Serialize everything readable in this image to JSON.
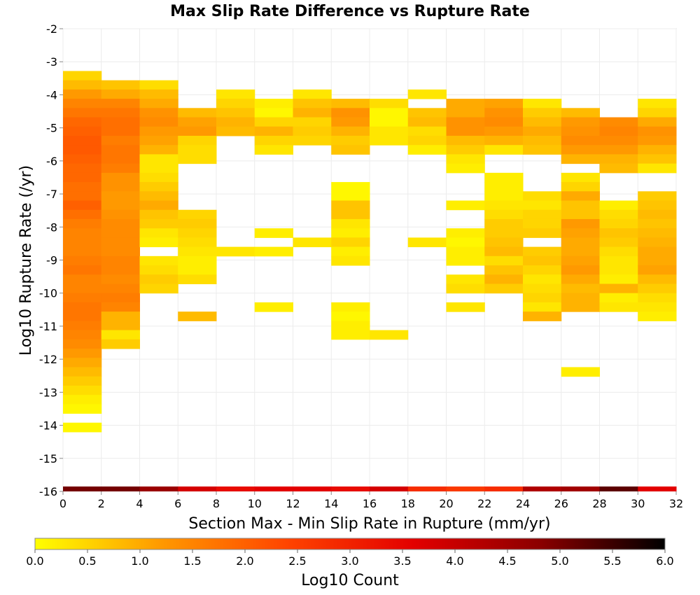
{
  "chart_data": {
    "type": "heatmap",
    "title": "Max Slip Rate Difference vs Rupture Rate",
    "xlabel": "Section Max - Min Slip Rate in Rupture (mm/yr)",
    "ylabel": "Log10 Rupture Rate (/yr)",
    "xlim": [
      0,
      32
    ],
    "ylim": [
      -16,
      -2
    ],
    "x_ticks": [
      0,
      2,
      4,
      6,
      8,
      10,
      12,
      14,
      16,
      18,
      20,
      22,
      24,
      26,
      28,
      30,
      32
    ],
    "y_ticks": [
      -2,
      -3,
      -4,
      -5,
      -6,
      -7,
      -8,
      -9,
      -10,
      -11,
      -12,
      -13,
      -14,
      -15,
      -16
    ],
    "grid": true,
    "x_bin_width": 2,
    "y_bin_height": 0.28,
    "colorbar": {
      "label": "Log10 Count",
      "min": 0.0,
      "max": 6.0,
      "ticks": [
        "0.0",
        "0.5",
        "1.0",
        "1.5",
        "2.0",
        "2.5",
        "3.0",
        "3.5",
        "4.0",
        "4.5",
        "5.0",
        "5.5",
        "6.0"
      ],
      "colors": [
        "#ffff00",
        "#ff9900",
        "#ff4400",
        "#e30000",
        "#8c0000",
        "#000000"
      ]
    },
    "columns": [
      {
        "x_start": 0,
        "top": -3.28,
        "values": [
          0.5,
          0.8,
          1.2,
          1.5,
          1.7,
          1.9,
          2.0,
          2.1,
          2.1,
          2.0,
          1.9,
          1.9,
          1.8,
          1.8,
          2.0,
          1.8,
          1.6,
          1.5,
          1.5,
          1.5,
          1.6,
          1.7,
          1.5,
          1.5,
          1.6,
          1.7,
          1.7,
          1.6,
          1.5,
          1.4,
          1.2,
          1.0,
          0.8,
          0.6,
          0.4,
          0.2,
          0.1,
          null,
          0.1
        ]
      },
      {
        "x_start": 2,
        "top": -3.56,
        "values": [
          0.7,
          1.0,
          1.5,
          1.7,
          1.8,
          1.8,
          1.6,
          1.7,
          1.7,
          1.6,
          1.3,
          1.3,
          1.2,
          1.2,
          1.3,
          1.4,
          1.4,
          1.4,
          1.4,
          1.5,
          1.5,
          1.4,
          1.5,
          1.6,
          1.5,
          0.9,
          0.9,
          0.3,
          0.6
        ]
      },
      {
        "x_start": 4,
        "top": -3.56,
        "values": [
          0.4,
          0.8,
          1.0,
          1.3,
          1.4,
          1.2,
          1.1,
          0.9,
          0.3,
          0.3,
          0.4,
          0.6,
          0.8,
          1.0,
          0.7,
          0.6,
          0.3,
          0.2,
          null,
          0.3,
          0.4,
          0.6,
          0.5
        ]
      },
      {
        "x_start": 6,
        "top": -4.4,
        "values": [
          0.8,
          1.1,
          1.2,
          0.5,
          0.4,
          0.4,
          null,
          null,
          null,
          null,
          null,
          0.5,
          0.6,
          0.5,
          0.4,
          0.3,
          0.2,
          0.2,
          0.4,
          null,
          null,
          null,
          0.8
        ]
      },
      {
        "x_start": 8,
        "top": -3.84,
        "values": [
          0.3,
          0.5,
          0.7,
          0.9,
          0.8,
          null,
          null,
          null,
          null,
          null,
          null,
          null,
          null,
          null,
          null,
          null,
          null,
          0.3
        ]
      },
      {
        "x_start": 10,
        "top": -4.12,
        "values": [
          0.2,
          0.1,
          0.5,
          0.9,
          0.5,
          0.3,
          null,
          null,
          null,
          null,
          null,
          null,
          null,
          null,
          0.2,
          null,
          0.2,
          null,
          null,
          null,
          null,
          null,
          0.2
        ]
      },
      {
        "x_start": 12,
        "top": -3.84,
        "values": [
          0.3,
          0.7,
          0.9,
          0.5,
          0.6,
          0.5,
          null,
          null,
          null,
          null,
          null,
          null,
          null,
          null,
          null,
          null,
          0.3
        ]
      },
      {
        "x_start": 14,
        "top": -4.12,
        "values": [
          0.8,
          1.3,
          1.2,
          0.9,
          0.6,
          0.7,
          null,
          null,
          null,
          0.1,
          0.1,
          0.7,
          0.7,
          0.3,
          0.2,
          0.5,
          0.2,
          0.3,
          null,
          null,
          null,
          null,
          0.2,
          0.1,
          0.2,
          0.2
        ]
      },
      {
        "x_start": 16,
        "top": -4.12,
        "values": [
          0.4,
          0.1,
          0.1,
          0.3,
          0.3,
          null,
          null,
          null,
          null,
          null,
          null,
          null,
          null,
          null,
          null,
          null,
          null,
          null,
          null,
          null,
          null,
          null,
          null,
          null,
          null,
          0.3
        ]
      },
      {
        "x_start": 18,
        "top": -3.84,
        "values": [
          0.3,
          null,
          0.7,
          0.8,
          0.4,
          0.5,
          0.2,
          null,
          null,
          null,
          null,
          null,
          null,
          null,
          null,
          null,
          0.3
        ]
      },
      {
        "x_start": 20,
        "top": -4.12,
        "values": [
          1.0,
          1.0,
          1.3,
          1.3,
          0.8,
          0.6,
          0.3,
          0.2,
          null,
          null,
          null,
          0.2,
          null,
          null,
          0.2,
          0.1,
          0.2,
          0.2,
          null,
          0.3,
          0.4,
          null,
          0.3
        ]
      },
      {
        "x_start": 22,
        "top": -4.12,
        "values": [
          1.1,
          1.3,
          1.4,
          1.2,
          0.9,
          0.3,
          null,
          null,
          0.2,
          0.2,
          0.2,
          0.3,
          0.4,
          0.6,
          0.6,
          0.7,
          0.8,
          0.4,
          0.7,
          0.9,
          0.6
        ]
      },
      {
        "x_start": 24,
        "top": -4.12,
        "values": [
          0.3,
          0.6,
          0.8,
          1.0,
          0.8,
          0.7,
          null,
          null,
          null,
          null,
          0.4,
          0.3,
          0.5,
          0.5,
          0.6,
          null,
          0.6,
          0.7,
          0.5,
          0.3,
          0.4,
          0.5,
          0.3,
          0.9
        ]
      },
      {
        "x_start": 26,
        "top": -4.4,
        "values": [
          0.8,
          1.2,
          1.3,
          1.4,
          1.2,
          0.9,
          null,
          0.3,
          0.5,
          1.0,
          0.7,
          0.7,
          1.2,
          1.1,
          1.0,
          1.0,
          1.1,
          1.2,
          1.0,
          0.8,
          0.9,
          0.9,
          null,
          null,
          null,
          null,
          null,
          null,
          0.2
        ]
      },
      {
        "x_start": 28,
        "top": -4.4,
        "values": [
          null,
          1.4,
          1.5,
          1.4,
          1.2,
          0.9,
          0.8,
          null,
          null,
          null,
          0.2,
          0.4,
          0.5,
          0.7,
          0.6,
          0.4,
          0.3,
          0.3,
          0.2,
          0.9,
          0.2,
          0.3
        ]
      },
      {
        "x_start": 30,
        "top": -4.12,
        "values": [
          0.3,
          0.5,
          1.0,
          1.3,
          1.2,
          0.9,
          0.7,
          0.3,
          null,
          null,
          0.6,
          0.7,
          0.8,
          0.7,
          0.8,
          0.9,
          1.0,
          1.0,
          1.1,
          0.8,
          0.6,
          0.4,
          0.3,
          0.2
        ]
      }
    ]
  }
}
